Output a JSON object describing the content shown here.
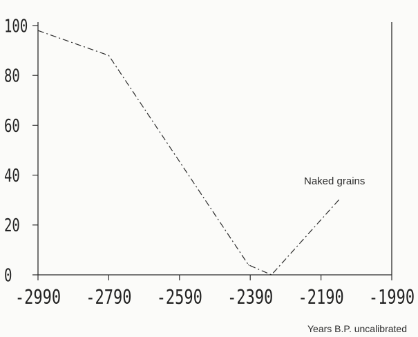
{
  "chart_data": {
    "type": "line",
    "title": "",
    "xlabel": "Years B.P. uncalibrated",
    "ylabel": "",
    "xlim": [
      -2990,
      -1990
    ],
    "ylim": [
      0,
      100
    ],
    "x_ticks": [
      -2990,
      -2790,
      -2590,
      -2390,
      -2190,
      -1990
    ],
    "y_ticks": [
      0,
      20,
      40,
      60,
      80,
      100
    ],
    "x_tick_labels": [
      "-2990",
      "-2790",
      "-2590",
      "-2390",
      "-2190",
      "-1990"
    ],
    "y_tick_labels": [
      "0",
      "20",
      "40",
      "60",
      "80",
      "100"
    ],
    "grid": false,
    "line_style": "dash-dot",
    "series": [
      {
        "name": "Naked grains",
        "x": [
          -2990,
          -2790,
          -2395,
          -2330,
          -2140
        ],
        "y": [
          98,
          88,
          4,
          0,
          30
        ]
      }
    ],
    "colors": {
      "ink": "#2b2b2b",
      "background": "#fbfbf9"
    }
  }
}
